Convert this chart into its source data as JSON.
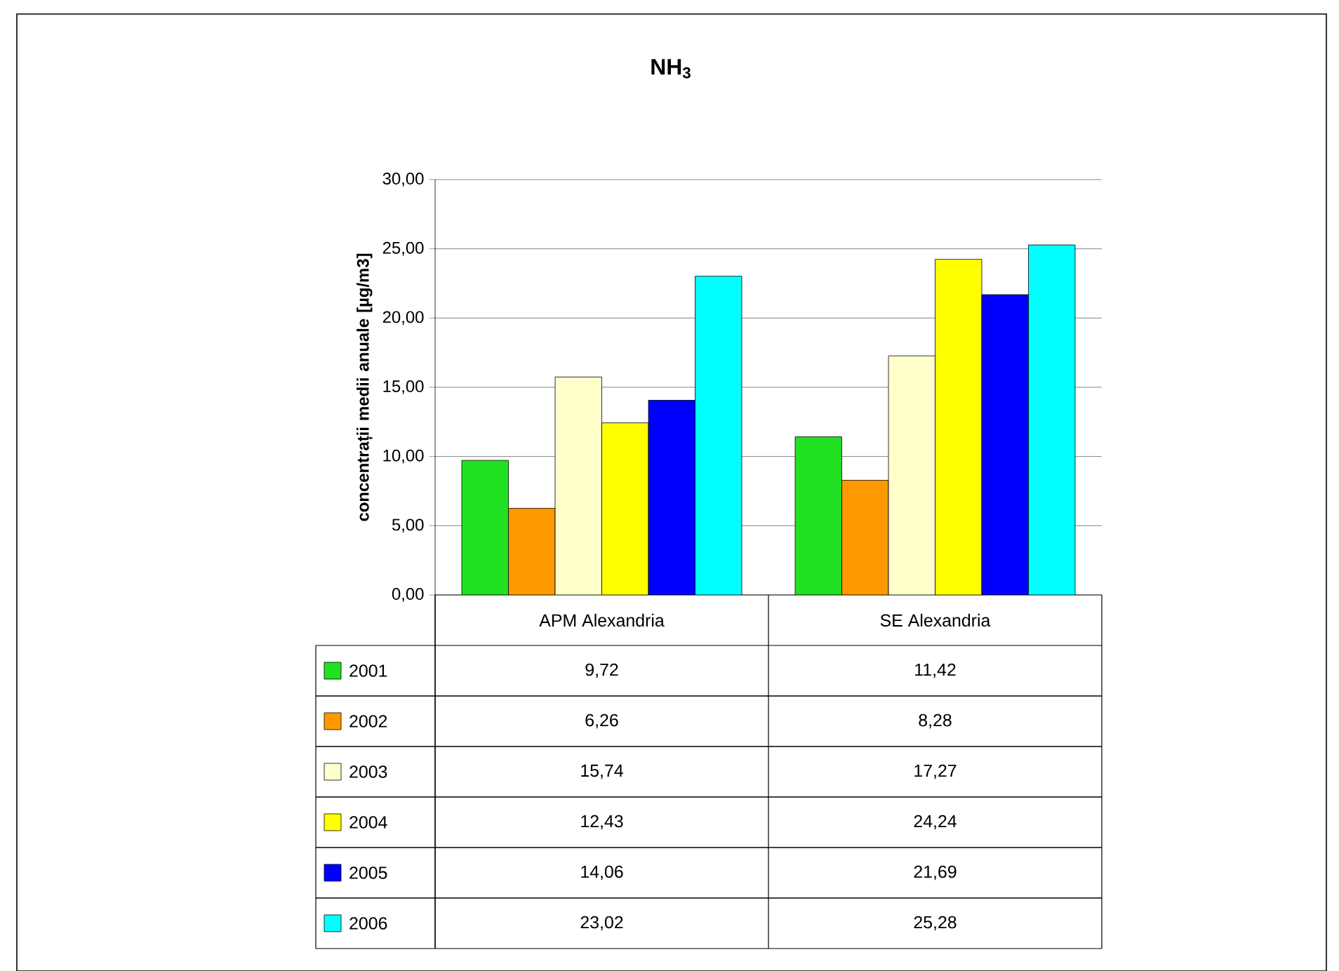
{
  "chart_data": {
    "type": "bar",
    "title": "NH$_{3}$",
    "ylabel": "concentrații medii anuale [µg/m3]",
    "categories": [
      "APM Alexandria",
      "SE Alexandria"
    ],
    "series": [
      {
        "name": "2001",
        "color": "#22e022",
        "values": [
          9.72,
          11.42
        ],
        "value_labels": [
          "9,72",
          "11,42"
        ]
      },
      {
        "name": "2002",
        "color": "#ff9900",
        "values": [
          6.26,
          8.28
        ],
        "value_labels": [
          "6,26",
          "8,28"
        ]
      },
      {
        "name": "2003",
        "color": "#ffffcc",
        "values": [
          15.74,
          17.27
        ],
        "value_labels": [
          "15,74",
          "17,27"
        ]
      },
      {
        "name": "2004",
        "color": "#ffff00",
        "values": [
          12.43,
          24.24
        ],
        "value_labels": [
          "12,43",
          "24,24"
        ]
      },
      {
        "name": "2005",
        "color": "#0000ff",
        "values": [
          14.06,
          21.69
        ],
        "value_labels": [
          "14,06",
          "21,69"
        ]
      },
      {
        "name": "2006",
        "color": "#00ffff",
        "values": [
          23.02,
          25.28
        ],
        "value_labels": [
          "23,02",
          "25,28"
        ]
      }
    ],
    "ylim": [
      0,
      30
    ],
    "yticks": [
      {
        "value": 0,
        "label": "0,00"
      },
      {
        "value": 5,
        "label": "5,00"
      },
      {
        "value": 10,
        "label": "10,00"
      },
      {
        "value": 15,
        "label": "15,00"
      },
      {
        "value": 20,
        "label": "20,00"
      },
      {
        "value": 25,
        "label": "25,00"
      },
      {
        "value": 30,
        "label": "30,00"
      }
    ],
    "grid": "y",
    "legend": "bottom"
  }
}
